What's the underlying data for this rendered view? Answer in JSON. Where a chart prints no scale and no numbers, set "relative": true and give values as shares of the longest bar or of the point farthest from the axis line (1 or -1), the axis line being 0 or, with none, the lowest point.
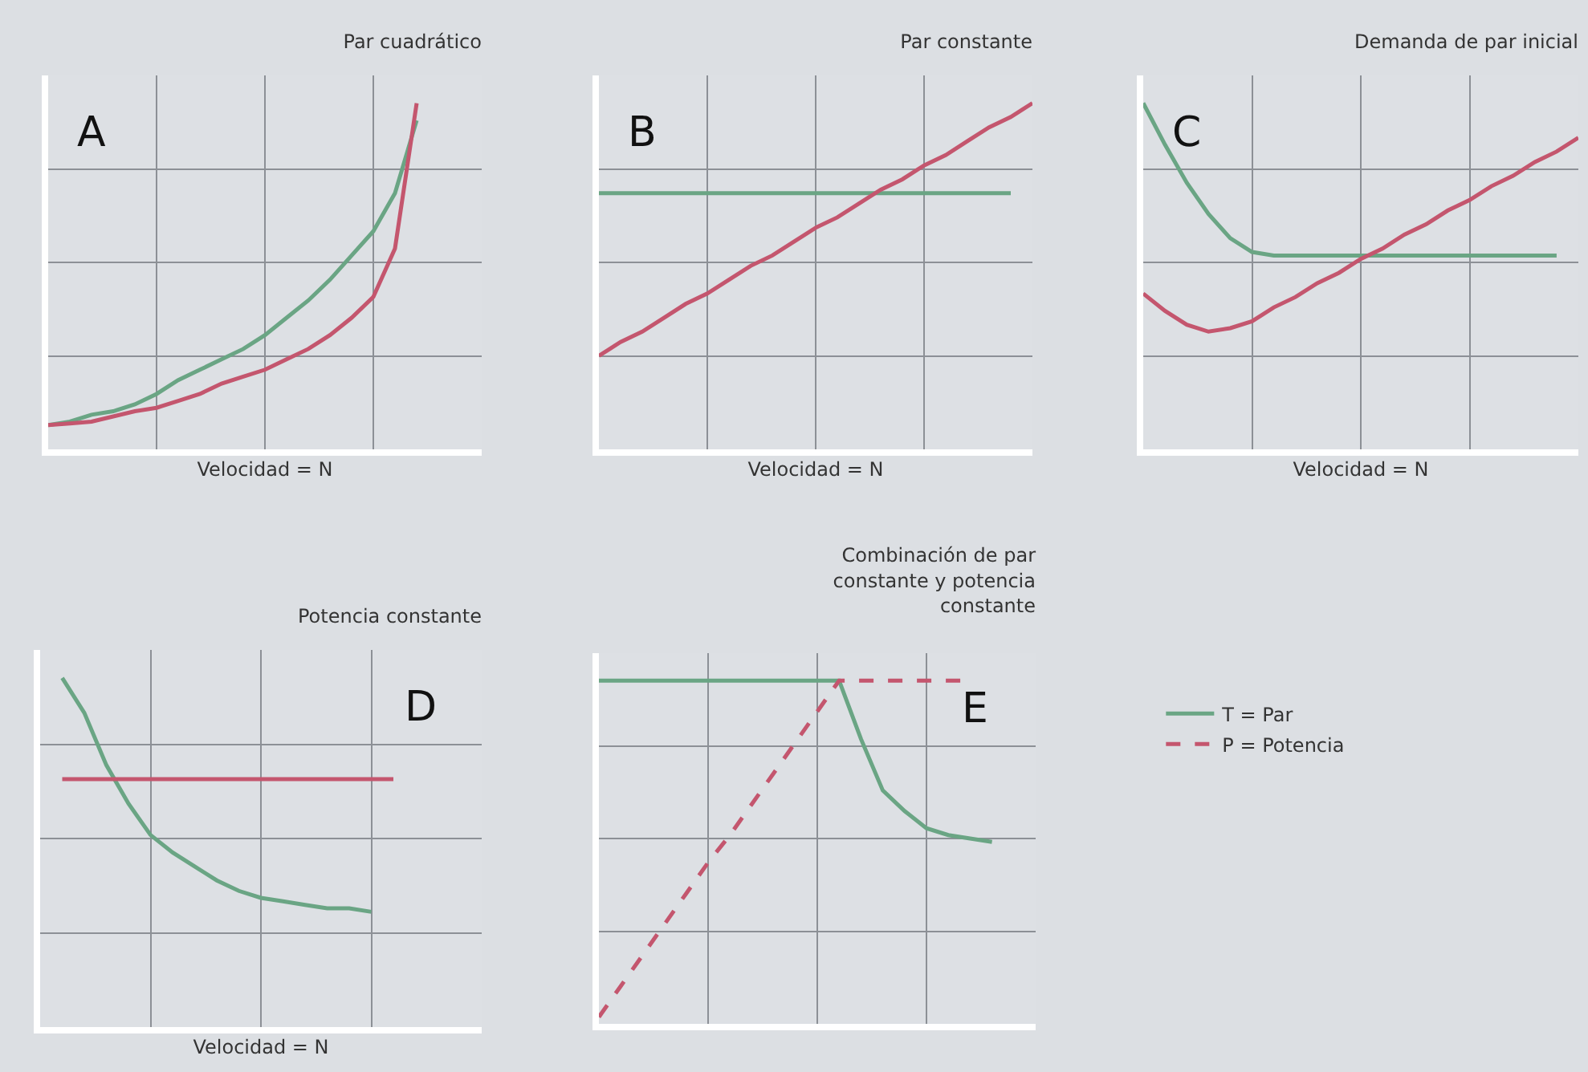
{
  "chart_data": [
    {
      "type": "line",
      "title": "Par cuadrático",
      "xlabel": "Velocidad = N",
      "relative": true,
      "grid": true,
      "annotations": [
        "A"
      ],
      "categories": [
        null,
        null,
        null,
        null,
        null,
        null,
        null,
        null,
        null,
        null,
        null,
        null,
        null,
        null,
        null,
        null,
        null,
        null,
        null,
        null,
        null
      ],
      "series": [
        {
          "color": "#6aa584",
          "values": [
            0.07,
            0.08,
            0.1,
            0.11,
            0.13,
            0.16,
            0.2,
            0.23,
            0.26,
            0.29,
            0.33,
            0.38,
            0.43,
            0.49,
            0.56,
            0.63,
            0.74,
            0.95,
            null,
            null,
            null
          ]
        },
        {
          "color": "#c4566e",
          "values": [
            0.07,
            0.075,
            0.08,
            0.095,
            0.11,
            0.12,
            0.14,
            0.16,
            0.19,
            0.21,
            0.23,
            0.26,
            0.29,
            0.33,
            0.38,
            0.44,
            0.58,
            1,
            null,
            null,
            null
          ]
        }
      ]
    },
    {
      "type": "line",
      "title": "Par constante",
      "xlabel": "Velocidad = N",
      "relative": true,
      "grid": true,
      "annotations": [
        "B"
      ],
      "categories": [
        null,
        null,
        null,
        null,
        null,
        null,
        null,
        null,
        null,
        null,
        null,
        null,
        null,
        null,
        null,
        null,
        null,
        null,
        null,
        null,
        null
      ],
      "series": [
        {
          "color": "#6aa584",
          "values": [
            0.74,
            0.74,
            0.74,
            0.74,
            0.74,
            0.74,
            0.74,
            0.74,
            0.74,
            0.74,
            0.74,
            0.74,
            0.74,
            0.74,
            0.74,
            0.74,
            0.74,
            0.74,
            0.74,
            0.74,
            null
          ]
        },
        {
          "color": "#c4566e",
          "values": [
            0.27,
            0.31,
            0.34,
            0.38,
            0.42,
            0.45,
            0.49,
            0.53,
            0.56,
            0.6,
            0.64,
            0.67,
            0.71,
            0.75,
            0.78,
            0.82,
            0.85,
            0.89,
            0.93,
            0.96,
            1
          ]
        }
      ]
    },
    {
      "type": "line",
      "title": "Demanda de par inicial",
      "xlabel": "Velocidad = N",
      "relative": true,
      "grid": true,
      "annotations": [
        "C"
      ],
      "categories": [
        null,
        null,
        null,
        null,
        null,
        null,
        null,
        null,
        null,
        null,
        null,
        null,
        null,
        null,
        null,
        null,
        null,
        null,
        null,
        null,
        null
      ],
      "series": [
        {
          "color": "#6aa584",
          "values": [
            1,
            0.88,
            0.77,
            0.68,
            0.61,
            0.57,
            0.56,
            0.56,
            0.56,
            0.56,
            0.56,
            0.56,
            0.56,
            0.56,
            0.56,
            0.56,
            0.56,
            0.56,
            0.56,
            0.56,
            null
          ]
        },
        {
          "color": "#c4566e",
          "values": [
            0.45,
            0.4,
            0.36,
            0.34,
            0.35,
            0.37,
            0.41,
            0.44,
            0.48,
            0.51,
            0.55,
            0.58,
            0.62,
            0.65,
            0.69,
            0.72,
            0.76,
            0.79,
            0.83,
            0.86,
            0.9
          ]
        }
      ]
    },
    {
      "type": "line",
      "title": "Potencia constante",
      "xlabel": "Velocidad = N",
      "relative": true,
      "grid": true,
      "annotations": [
        "D"
      ],
      "categories": [
        null,
        null,
        null,
        null,
        null,
        null,
        null,
        null,
        null,
        null,
        null,
        null,
        null,
        null,
        null,
        null,
        null,
        null,
        null,
        null,
        null
      ],
      "series": [
        {
          "color": "#6aa584",
          "values": [
            null,
            1,
            0.9,
            0.75,
            0.64,
            0.55,
            0.5,
            0.46,
            0.42,
            0.39,
            0.37,
            0.36,
            0.35,
            0.34,
            0.34,
            0.33,
            null,
            null,
            null,
            null,
            null
          ]
        },
        {
          "color": "#c4566e",
          "values": [
            null,
            0.71,
            0.71,
            0.71,
            0.71,
            0.71,
            0.71,
            0.71,
            0.71,
            0.71,
            0.71,
            0.71,
            0.71,
            0.71,
            0.71,
            0.71,
            0.71,
            null,
            null,
            null,
            null
          ]
        }
      ]
    },
    {
      "type": "line",
      "title": "Combinación de par constante y potencia constante",
      "relative": true,
      "grid": true,
      "legend": "right",
      "annotations": [
        "E"
      ],
      "categories": [
        null,
        null,
        null,
        null,
        null,
        null,
        null,
        null,
        null,
        null,
        null,
        null,
        null,
        null,
        null,
        null,
        null,
        null,
        null,
        null,
        null
      ],
      "series": [
        {
          "name": "T = Par",
          "color": "#6aa584",
          "line_style": "solid",
          "values": [
            1,
            1,
            1,
            1,
            1,
            1,
            1,
            1,
            1,
            1,
            1,
            1,
            0.83,
            0.68,
            0.62,
            0.57,
            0.55,
            0.54,
            0.53,
            null,
            null
          ]
        },
        {
          "name": "P = Potencia",
          "color": "#c4566e",
          "line_style": "dashed",
          "values": [
            0.02,
            0.11,
            0.2,
            0.29,
            0.38,
            0.47,
            0.55,
            0.64,
            0.73,
            0.82,
            0.91,
            1,
            1,
            1,
            1,
            1,
            1,
            1,
            null,
            null,
            null
          ]
        }
      ]
    }
  ]
}
